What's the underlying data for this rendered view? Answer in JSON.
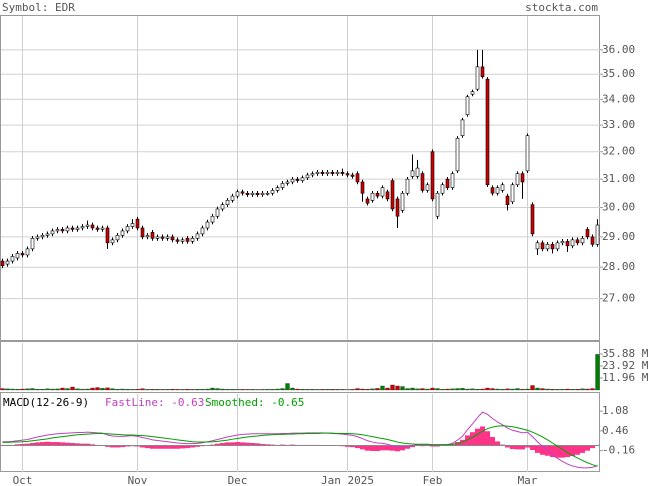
{
  "chart_data": [
    {
      "type": "candlestick",
      "title": "Symbol: EDR",
      "source": "stockta.com",
      "log_scale": true,
      "grid": true,
      "up_color": "#ffffff",
      "down_color": "#cc0000",
      "ylim": [
        25.74,
        37.48
      ],
      "yticks": [
        {
          "value": 27,
          "label": "27.00"
        },
        {
          "value": 28,
          "label": "28.00"
        },
        {
          "value": 29,
          "label": "29.00"
        },
        {
          "value": 30,
          "label": "30.00"
        },
        {
          "value": 31,
          "label": "31.00"
        },
        {
          "value": 32,
          "label": "32.00"
        },
        {
          "value": 33,
          "label": "33.00"
        },
        {
          "value": 34,
          "label": "34.00"
        },
        {
          "value": 35,
          "label": "35.00"
        },
        {
          "value": 36,
          "label": "36.00"
        }
      ],
      "open": [
        28.2,
        28.1,
        28.2,
        28.3,
        28.45,
        28.4,
        28.6,
        28.95,
        29.0,
        29.05,
        29.1,
        29.2,
        29.25,
        29.2,
        29.3,
        29.25,
        29.3,
        29.35,
        29.4,
        29.3,
        29.25,
        29.3,
        28.8,
        28.9,
        29.05,
        29.2,
        29.35,
        29.6,
        29.3,
        29.0,
        29.15,
        28.95,
        29.0,
        28.95,
        29.0,
        28.9,
        28.85,
        28.95,
        28.85,
        28.95,
        29.1,
        29.3,
        29.5,
        29.7,
        29.95,
        30.1,
        30.25,
        30.4,
        30.55,
        30.5,
        30.45,
        30.5,
        30.45,
        30.5,
        30.5,
        30.6,
        30.7,
        30.85,
        30.9,
        31.0,
        30.95,
        31.05,
        31.15,
        31.2,
        31.25,
        31.2,
        31.25,
        31.2,
        31.25,
        31.2,
        31.15,
        31.2,
        30.9,
        30.3,
        30.25,
        30.5,
        30.4,
        30.55,
        30.95,
        30.3,
        29.9,
        30.5,
        31.1,
        31.1,
        31.2,
        30.6,
        32.0,
        29.7,
        30.5,
        31.0,
        30.7,
        31.3,
        32.6,
        33.4,
        34.2,
        34.4,
        35.3,
        34.8,
        30.7,
        30.5,
        30.6,
        30.4,
        30.2,
        30.8,
        31.2,
        31.3,
        30.1,
        28.6,
        28.8,
        28.6,
        28.75,
        28.6,
        28.8,
        28.85,
        28.7,
        28.9,
        28.8,
        29.25,
        29.0,
        28.75
      ],
      "high": [
        28.28,
        28.28,
        28.43,
        28.53,
        28.53,
        28.68,
        29.03,
        29.08,
        29.13,
        29.18,
        29.28,
        29.33,
        29.33,
        29.38,
        29.38,
        29.38,
        29.43,
        29.55,
        29.48,
        29.38,
        29.38,
        29.38,
        28.98,
        29.13,
        29.28,
        29.43,
        29.6,
        29.68,
        29.38,
        29.13,
        29.23,
        29.08,
        29.08,
        29.08,
        29.08,
        28.98,
        28.98,
        29.03,
        29.03,
        29.18,
        29.38,
        29.58,
        29.78,
        30.03,
        30.18,
        30.33,
        30.48,
        30.63,
        30.63,
        30.58,
        30.58,
        30.58,
        30.58,
        30.58,
        30.68,
        30.78,
        30.93,
        30.98,
        31.08,
        31.08,
        31.13,
        31.23,
        31.28,
        31.33,
        31.33,
        31.33,
        31.33,
        31.33,
        31.38,
        31.28,
        31.23,
        31.28,
        30.98,
        30.38,
        30.58,
        30.58,
        30.78,
        30.63,
        31.03,
        30.38,
        30.58,
        31.08,
        31.9,
        31.7,
        31.28,
        30.88,
        32.08,
        30.58,
        30.88,
        31.08,
        31.28,
        32.58,
        33.28,
        34.18,
        34.38,
        36.0,
        36.0,
        34.88,
        30.78,
        30.78,
        30.88,
        30.48,
        30.88,
        31.28,
        31.28,
        32.68,
        30.18,
        28.88,
        28.88,
        28.83,
        28.83,
        28.88,
        28.93,
        28.93,
        28.98,
        28.98,
        29.03,
        29.33,
        29.08,
        29.6
      ],
      "low": [
        27.97,
        28.02,
        28.12,
        28.22,
        28.32,
        28.32,
        28.52,
        28.87,
        28.92,
        28.97,
        29.02,
        29.12,
        29.12,
        29.12,
        29.17,
        29.17,
        29.22,
        29.27,
        29.22,
        29.17,
        29.17,
        28.6,
        28.72,
        28.82,
        28.97,
        29.12,
        29.27,
        29.22,
        28.92,
        28.92,
        28.87,
        28.87,
        28.87,
        28.87,
        28.82,
        28.77,
        28.77,
        28.77,
        28.77,
        28.87,
        29.02,
        29.22,
        29.42,
        29.62,
        29.87,
        30.02,
        30.17,
        30.32,
        30.42,
        30.37,
        30.37,
        30.37,
        30.37,
        30.42,
        30.42,
        30.52,
        30.62,
        30.77,
        30.82,
        30.87,
        30.87,
        30.97,
        31.07,
        31.12,
        31.12,
        31.12,
        31.12,
        31.12,
        31.12,
        31.07,
        31.02,
        30.82,
        30.2,
        30.07,
        30.17,
        30.32,
        30.32,
        30.22,
        29.87,
        29.3,
        29.82,
        30.42,
        31.02,
        31.02,
        30.52,
        30.52,
        30.22,
        29.6,
        30.42,
        30.62,
        30.62,
        31.22,
        32.52,
        33.32,
        34.12,
        34.32,
        34.82,
        30.72,
        30.42,
        30.42,
        30.52,
        29.9,
        30.12,
        30.72,
        30.3,
        31.22,
        29.02,
        28.4,
        28.52,
        28.52,
        28.45,
        28.52,
        28.72,
        28.5,
        28.62,
        28.72,
        28.72,
        28.92,
        28.67,
        28.67
      ],
      "close": [
        28.05,
        28.2,
        28.35,
        28.45,
        28.4,
        28.6,
        28.95,
        29.0,
        29.05,
        29.1,
        29.2,
        29.25,
        29.2,
        29.3,
        29.25,
        29.3,
        29.35,
        29.4,
        29.3,
        29.25,
        29.3,
        28.8,
        28.9,
        29.05,
        29.2,
        29.35,
        29.45,
        29.3,
        29.0,
        29.05,
        28.95,
        29.0,
        28.95,
        29.0,
        28.9,
        28.85,
        28.9,
        28.85,
        28.95,
        29.1,
        29.3,
        29.5,
        29.7,
        29.95,
        30.1,
        30.25,
        30.4,
        30.55,
        30.5,
        30.45,
        30.5,
        30.45,
        30.5,
        30.5,
        30.6,
        30.7,
        30.85,
        30.9,
        31.0,
        30.95,
        31.05,
        31.15,
        31.2,
        31.25,
        31.2,
        31.25,
        31.2,
        31.25,
        31.2,
        31.15,
        31.1,
        30.9,
        30.5,
        30.15,
        30.5,
        30.4,
        30.7,
        30.3,
        29.95,
        29.7,
        30.5,
        31.0,
        31.3,
        31.4,
        30.6,
        30.8,
        30.3,
        30.5,
        30.8,
        30.7,
        31.2,
        32.5,
        33.2,
        34.1,
        34.3,
        35.3,
        34.9,
        30.8,
        30.5,
        30.7,
        30.8,
        30.1,
        30.8,
        31.2,
        30.9,
        32.6,
        29.1,
        28.8,
        28.6,
        28.75,
        28.6,
        28.8,
        28.85,
        28.7,
        28.9,
        28.8,
        28.95,
        29.0,
        28.75,
        29.4
      ]
    },
    {
      "type": "bar",
      "up_color": "#008000",
      "down_color": "#cc0000",
      "ylim": [
        0,
        47.84
      ],
      "yticks": [
        {
          "value": 11.96,
          "label": "11.96 M"
        },
        {
          "value": 23.92,
          "label": "23.92 M"
        },
        {
          "value": 35.88,
          "label": "35.88 M"
        }
      ],
      "values": [
        1.5,
        1.2,
        1.0,
        0.8,
        1.0,
        1.3,
        1.5,
        0.9,
        0.8,
        1.2,
        1.0,
        1.1,
        2.0,
        1.5,
        3.0,
        1.2,
        0.9,
        1.0,
        2.0,
        2.5,
        1.8,
        2.2,
        1.4,
        0.8,
        1.0,
        0.7,
        0.6,
        0.8,
        1.4,
        0.6,
        0.8,
        0.7,
        0.5,
        0.6,
        0.9,
        0.6,
        0.5,
        0.8,
        0.6,
        0.7,
        0.8,
        1.0,
        2.0,
        1.5,
        1.0,
        0.8,
        0.7,
        0.6,
        0.6,
        0.5,
        0.6,
        0.4,
        0.5,
        0.6,
        0.7,
        1.0,
        1.5,
        6.5,
        2.0,
        1.0,
        0.8,
        0.6,
        0.7,
        0.5,
        0.6,
        0.7,
        0.8,
        0.6,
        0.5,
        0.4,
        0.6,
        1.5,
        1.0,
        0.8,
        1.2,
        1.6,
        4.0,
        2.0,
        5.0,
        4.0,
        3.5,
        1.5,
        2.0,
        1.2,
        1.5,
        1.0,
        2.0,
        1.5,
        0.8,
        1.0,
        1.2,
        1.5,
        1.8,
        1.0,
        1.2,
        0.8,
        1.0,
        2.0,
        1.5,
        1.0,
        0.8,
        1.2,
        1.0,
        1.5,
        0.8,
        1.0,
        4.5,
        2.0,
        1.5,
        1.0,
        0.8,
        0.6,
        0.8,
        1.0,
        0.7,
        0.8,
        1.2,
        1.0,
        1.5,
        35.5
      ]
    },
    {
      "type": "line",
      "title": "MACD(12-26-9)",
      "categories": [
        null,
        null,
        null,
        null,
        "Oct",
        null,
        null,
        null,
        null,
        null,
        null,
        null,
        null,
        null,
        null,
        null,
        null,
        null,
        null,
        null,
        null,
        null,
        null,
        null,
        null,
        null,
        null,
        "Nov",
        null,
        null,
        null,
        null,
        null,
        null,
        null,
        null,
        null,
        null,
        null,
        null,
        null,
        null,
        null,
        null,
        null,
        null,
        null,
        "Dec",
        null,
        null,
        null,
        null,
        null,
        null,
        null,
        null,
        null,
        null,
        null,
        null,
        null,
        null,
        null,
        null,
        null,
        null,
        null,
        null,
        null,
        "Jan 2025",
        null,
        null,
        null,
        null,
        null,
        null,
        null,
        null,
        null,
        null,
        null,
        null,
        null,
        null,
        null,
        null,
        "Feb",
        null,
        null,
        null,
        null,
        null,
        null,
        null,
        null,
        null,
        null,
        null,
        null,
        null,
        null,
        null,
        null,
        null,
        null,
        "Mar",
        null,
        null,
        null,
        null,
        null,
        null,
        null,
        null,
        null,
        null,
        null,
        null,
        null,
        null
      ],
      "ylim": [
        -0.83,
        1.65
      ],
      "yticks": [
        {
          "value": -0.16,
          "label": "-0.16"
        },
        {
          "value": 0.46,
          "label": "0.46"
        },
        {
          "value": 1.08,
          "label": "1.08"
        }
      ],
      "series": [
        {
          "name": "FastLine: -0.63",
          "color": "#c040c0",
          "values": [
            0.12,
            0.12,
            0.13,
            0.15,
            0.17,
            0.19,
            0.23,
            0.27,
            0.3,
            0.33,
            0.35,
            0.37,
            0.38,
            0.39,
            0.4,
            0.41,
            0.41,
            0.42,
            0.41,
            0.4,
            0.39,
            0.33,
            0.3,
            0.29,
            0.29,
            0.3,
            0.31,
            0.29,
            0.25,
            0.22,
            0.18,
            0.16,
            0.14,
            0.12,
            0.1,
            0.08,
            0.07,
            0.06,
            0.06,
            0.07,
            0.09,
            0.12,
            0.15,
            0.19,
            0.23,
            0.27,
            0.3,
            0.33,
            0.35,
            0.36,
            0.37,
            0.37,
            0.37,
            0.37,
            0.37,
            0.37,
            0.38,
            0.38,
            0.39,
            0.39,
            0.39,
            0.4,
            0.4,
            0.4,
            0.4,
            0.39,
            0.38,
            0.37,
            0.36,
            0.34,
            0.32,
            0.28,
            0.22,
            0.15,
            0.11,
            0.08,
            0.07,
            0.04,
            -0.01,
            -0.07,
            -0.07,
            -0.04,
            0.0,
            0.03,
            0.02,
            0.03,
            0.0,
            0.0,
            0.02,
            0.03,
            0.07,
            0.17,
            0.29,
            0.5,
            0.68,
            0.88,
            1.05,
            0.98,
            0.85,
            0.74,
            0.65,
            0.55,
            0.48,
            0.44,
            0.4,
            0.42,
            0.28,
            0.12,
            -0.02,
            -0.14,
            -0.28,
            -0.4,
            -0.5,
            -0.58,
            -0.64,
            -0.68,
            -0.7,
            -0.7,
            -0.68,
            -0.63
          ]
        },
        {
          "name": "Smoothed: -0.65",
          "color": "#00a000",
          "values": [
            0.1,
            0.1,
            0.11,
            0.11,
            0.12,
            0.13,
            0.15,
            0.17,
            0.19,
            0.21,
            0.24,
            0.26,
            0.28,
            0.3,
            0.32,
            0.34,
            0.35,
            0.36,
            0.37,
            0.38,
            0.38,
            0.37,
            0.36,
            0.35,
            0.34,
            0.33,
            0.33,
            0.32,
            0.31,
            0.3,
            0.28,
            0.26,
            0.24,
            0.22,
            0.2,
            0.18,
            0.16,
            0.14,
            0.12,
            0.11,
            0.11,
            0.11,
            0.12,
            0.13,
            0.15,
            0.17,
            0.2,
            0.22,
            0.25,
            0.27,
            0.29,
            0.3,
            0.32,
            0.33,
            0.34,
            0.35,
            0.35,
            0.36,
            0.36,
            0.37,
            0.37,
            0.38,
            0.38,
            0.38,
            0.39,
            0.39,
            0.39,
            0.38,
            0.38,
            0.38,
            0.37,
            0.36,
            0.34,
            0.31,
            0.28,
            0.25,
            0.22,
            0.19,
            0.15,
            0.11,
            0.08,
            0.06,
            0.05,
            0.04,
            0.04,
            0.04,
            0.03,
            0.03,
            0.03,
            0.03,
            0.04,
            0.06,
            0.11,
            0.18,
            0.26,
            0.35,
            0.45,
            0.53,
            0.58,
            0.61,
            0.62,
            0.61,
            0.59,
            0.56,
            0.52,
            0.48,
            0.42,
            0.35,
            0.27,
            0.18,
            0.08,
            -0.02,
            -0.12,
            -0.22,
            -0.31,
            -0.39,
            -0.47,
            -0.54,
            -0.6,
            -0.65
          ]
        }
      ],
      "histogram": {
        "color": "#ff3388",
        "values": [
          0.02,
          0.02,
          0.02,
          0.04,
          0.05,
          0.06,
          0.08,
          0.1,
          0.11,
          0.12,
          0.11,
          0.11,
          0.1,
          0.09,
          0.08,
          0.07,
          0.06,
          0.06,
          0.04,
          0.02,
          0.01,
          -0.04,
          -0.06,
          -0.06,
          -0.05,
          -0.03,
          -0.02,
          -0.03,
          -0.06,
          -0.08,
          -0.1,
          -0.1,
          -0.1,
          -0.1,
          -0.1,
          -0.1,
          -0.09,
          -0.08,
          -0.06,
          -0.04,
          -0.02,
          0.01,
          0.03,
          0.06,
          0.08,
          0.1,
          0.1,
          0.11,
          0.1,
          0.09,
          0.08,
          0.07,
          0.05,
          0.04,
          0.03,
          0.02,
          0.03,
          0.02,
          0.03,
          0.02,
          0.02,
          0.02,
          0.02,
          0.02,
          0.01,
          0.0,
          -0.01,
          -0.01,
          -0.02,
          -0.04,
          -0.05,
          -0.08,
          -0.12,
          -0.16,
          -0.17,
          -0.17,
          -0.15,
          -0.15,
          -0.16,
          -0.18,
          -0.15,
          -0.1,
          -0.05,
          -0.01,
          -0.02,
          -0.01,
          -0.03,
          -0.03,
          -0.01,
          0.0,
          0.03,
          0.11,
          0.18,
          0.32,
          0.42,
          0.53,
          0.6,
          0.45,
          0.27,
          0.13,
          0.03,
          -0.06,
          -0.11,
          -0.12,
          -0.12,
          -0.06,
          -0.14,
          -0.23,
          -0.29,
          -0.32,
          -0.36,
          -0.38,
          -0.38,
          -0.36,
          -0.33,
          -0.29,
          -0.23,
          -0.16,
          -0.08,
          0.02
        ]
      }
    }
  ]
}
